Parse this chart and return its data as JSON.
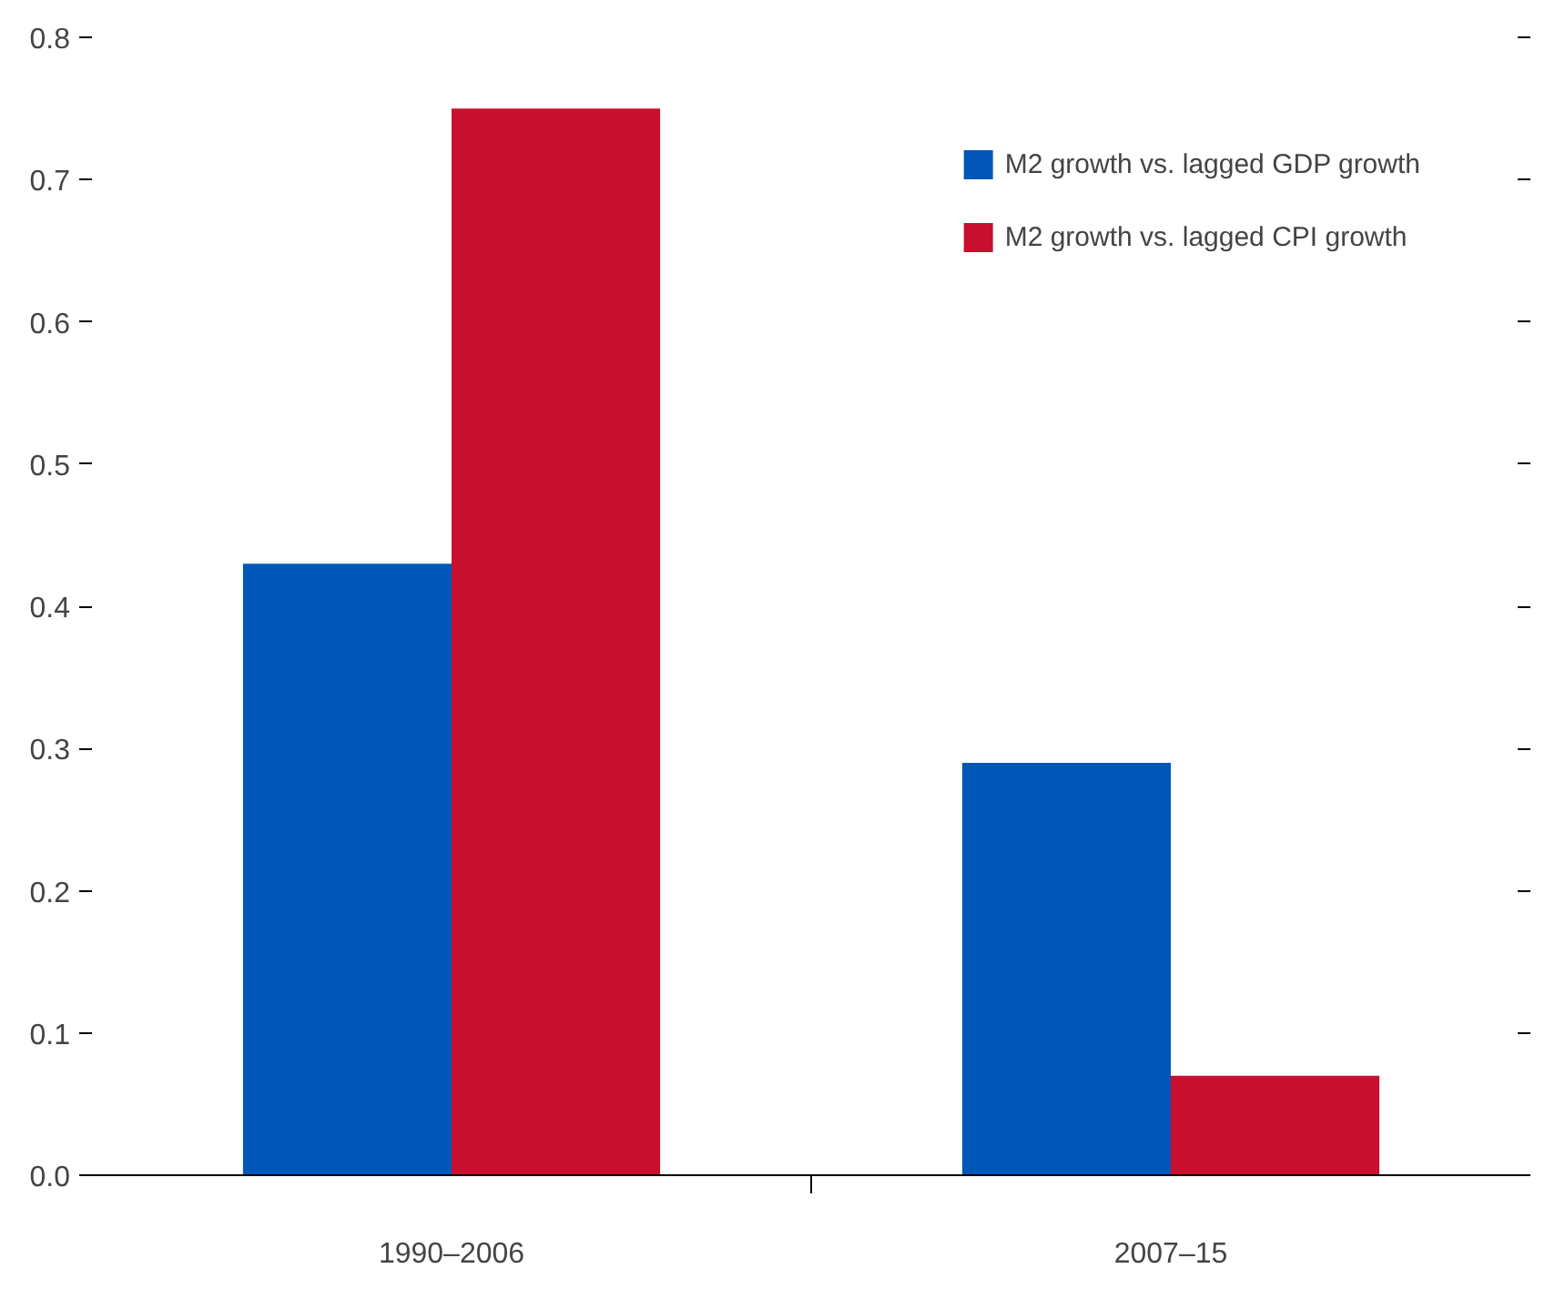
{
  "chart_data": {
    "type": "bar",
    "categories": [
      "1990–2006",
      "2007–15"
    ],
    "series": [
      {
        "name": "M2 growth vs. lagged GDP growth",
        "color": "#0057b8",
        "values": [
          0.43,
          0.29
        ]
      },
      {
        "name": "M2 growth vs. lagged CPI growth",
        "color": "#c8102e",
        "values": [
          0.75,
          0.07
        ]
      }
    ],
    "ylim": [
      0,
      0.8
    ],
    "yticks": [
      {
        "value": 0,
        "label": "0.0"
      },
      0.1,
      0.2,
      0.3,
      0.4,
      0.5,
      0.6,
      0.7,
      0.8
    ],
    "grid": false,
    "legend": "top right"
  }
}
